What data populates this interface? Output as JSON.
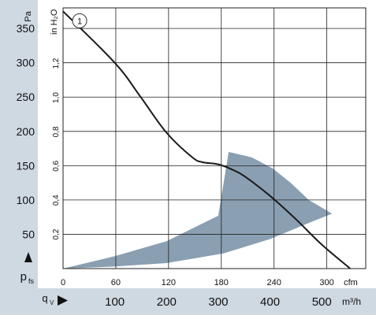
{
  "chart_data": {
    "type": "line",
    "ylabel_pa": "Pa",
    "ylabel_inh2o": "in H₂O",
    "y_pa_ticks": [
      "50",
      "100",
      "150",
      "200",
      "250",
      "300",
      "350"
    ],
    "y_inh2o_ticks": [
      "0,2",
      "0,4",
      "0,6",
      "0,8",
      "1,0",
      "1,2"
    ],
    "x_cfm_ticks": [
      "0",
      "60",
      "120",
      "180",
      "240",
      "300"
    ],
    "x_cfm_unit": "cfm",
    "x_m3h_ticks": [
      "100",
      "200",
      "300",
      "400",
      "500"
    ],
    "x_m3h_unit": "m³/h",
    "pressure_symbol": "p",
    "pressure_sub": "fs",
    "flow_symbol": "q",
    "flow_sub": "V",
    "ylim_pa": [
      0,
      380
    ],
    "xlim_m3h": [
      0,
      585
    ],
    "series": [
      {
        "name": "1",
        "x_m3h": [
          0,
          100,
          150,
          200,
          250,
          270,
          300,
          325,
          350,
          400,
          450,
          500,
          555
        ],
        "y_pa": [
          375,
          300,
          250,
          198,
          162,
          155,
          152,
          145,
          135,
          106,
          72,
          35,
          0
        ]
      }
    ],
    "operating_area": {
      "x_m3h": [
        0,
        100,
        200,
        300,
        320,
        365,
        405,
        440,
        475,
        520,
        470,
        400,
        310,
        200,
        100,
        0
      ],
      "y_pa": [
        0,
        18,
        40,
        77,
        170,
        162,
        146,
        125,
        100,
        80,
        65,
        43,
        22,
        8,
        3,
        0
      ]
    },
    "colors": {
      "area": "#8a9fb2",
      "curve": "#1a1a1a",
      "grid": "#222222",
      "band": "#cfd9e2"
    }
  }
}
